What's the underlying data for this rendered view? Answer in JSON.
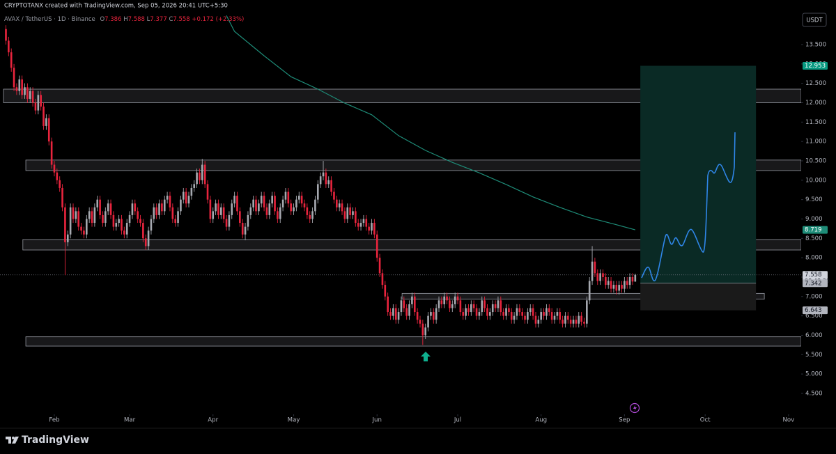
{
  "header": {
    "author_line": "CRYPTOTANX created with TradingView.com, Sep 05, 2026 20:41 UTC+5:30",
    "symbol": "AVAX / TetherUS · 1D · Binance",
    "ohlc": [
      {
        "label": "O",
        "value": "7.386"
      },
      {
        "label": "H",
        "value": "7.588"
      },
      {
        "label": "L",
        "value": "7.377"
      },
      {
        "label": "C",
        "value": "7.558"
      }
    ],
    "change": "+0.172 (+2.33%)"
  },
  "currency": "USDT",
  "branding": "TradingView",
  "chart_data": {
    "type": "candlestick",
    "up_color": "#a6a9b0",
    "down_color": "#e8243d",
    "xlim": [
      11.8,
      309.7
    ],
    "ylim": [
      3.96,
      14.65
    ],
    "xticks": [
      {
        "value": 32,
        "label": "Feb"
      },
      {
        "value": 60,
        "label": "Mar"
      },
      {
        "value": 91,
        "label": "Apr"
      },
      {
        "value": 121,
        "label": "May"
      },
      {
        "value": 152,
        "label": "Jun"
      },
      {
        "value": 182,
        "label": "Jul"
      },
      {
        "value": 213,
        "label": "Aug"
      },
      {
        "value": 244,
        "label": "Sep"
      },
      {
        "value": 274,
        "label": "Oct"
      },
      {
        "value": 305,
        "label": "Nov"
      }
    ],
    "yticks": [
      {
        "value": 4.5,
        "label": "4.500"
      },
      {
        "value": 5,
        "label": "5.000"
      },
      {
        "value": 5.5,
        "label": "5.500"
      },
      {
        "value": 6,
        "label": "6.000"
      },
      {
        "value": 6.5,
        "label": "6.500"
      },
      {
        "value": 7,
        "label": "7.000"
      },
      {
        "value": 7.5,
        "label": "7.500"
      },
      {
        "value": 8,
        "label": "8.000"
      },
      {
        "value": 8.5,
        "label": "8.500"
      },
      {
        "value": 9,
        "label": "9.000"
      },
      {
        "value": 9.5,
        "label": "9.500"
      },
      {
        "value": 10,
        "label": "10.000"
      },
      {
        "value": 10.5,
        "label": "10.500"
      },
      {
        "value": 11,
        "label": "11.000"
      },
      {
        "value": 11.5,
        "label": "11.500"
      },
      {
        "value": 12,
        "label": "12.000"
      },
      {
        "value": 12.5,
        "label": "12.500"
      },
      {
        "value": 13,
        "label": "13.000"
      },
      {
        "value": 13.5,
        "label": "13.500"
      }
    ],
    "x": [
      14,
      15,
      16,
      17,
      18,
      19,
      20,
      21,
      22,
      23,
      24,
      25,
      26,
      27,
      28,
      29,
      30,
      31,
      32,
      33,
      34,
      35,
      36,
      37,
      38,
      39,
      40,
      41,
      42,
      43,
      44,
      45,
      46,
      47,
      48,
      49,
      50,
      51,
      52,
      53,
      54,
      55,
      56,
      57,
      58,
      59,
      60,
      61,
      62,
      63,
      64,
      65,
      66,
      67,
      68,
      69,
      70,
      71,
      72,
      73,
      74,
      75,
      76,
      77,
      78,
      79,
      80,
      81,
      82,
      83,
      84,
      85,
      86,
      87,
      88,
      89,
      90,
      91,
      92,
      93,
      94,
      95,
      96,
      97,
      98,
      99,
      100,
      101,
      102,
      103,
      104,
      105,
      106,
      107,
      108,
      109,
      110,
      111,
      112,
      113,
      114,
      115,
      116,
      117,
      118,
      119,
      120,
      121,
      122,
      123,
      124,
      125,
      126,
      127,
      128,
      129,
      130,
      131,
      132,
      133,
      134,
      135,
      136,
      137,
      138,
      139,
      140,
      141,
      142,
      143,
      144,
      145,
      146,
      147,
      148,
      149,
      150,
      151,
      152,
      153,
      154,
      155,
      156,
      157,
      158,
      159,
      160,
      161,
      162,
      163,
      164,
      165,
      166,
      167,
      168,
      169,
      170,
      171,
      172,
      173,
      174,
      175,
      176,
      177,
      178,
      179,
      180,
      181,
      182,
      183,
      184,
      185,
      186,
      187,
      188,
      189,
      190,
      191,
      192,
      193,
      194,
      195,
      196,
      197,
      198,
      199,
      200,
      201,
      202,
      203,
      204,
      205,
      206,
      207,
      208,
      209,
      210,
      211,
      212,
      213,
      214,
      215,
      216,
      217,
      218,
      219,
      220,
      221,
      222,
      223,
      224,
      225,
      226,
      227,
      228,
      229,
      230,
      231,
      232,
      233,
      234,
      235,
      236,
      237,
      238,
      239,
      240,
      241,
      242,
      243,
      244,
      245,
      246,
      247,
      248
    ],
    "open": [
      13.9,
      13.6,
      13.3,
      12.9,
      12.4,
      12.3,
      12.6,
      12.2,
      12.4,
      12.1,
      12.3,
      12.0,
      11.8,
      12.2,
      11.9,
      11.4,
      11.6,
      11.0,
      10.4,
      10.2,
      10.0,
      9.8,
      9.3,
      8.4,
      8.6,
      9.3,
      9.0,
      9.2,
      8.8,
      8.7,
      8.6,
      9.0,
      9.2,
      8.9,
      9.3,
      9.5,
      9.1,
      8.9,
      9.2,
      9.4,
      9.1,
      8.8,
      8.9,
      9.0,
      8.7,
      8.6,
      8.9,
      9.1,
      9.4,
      9.2,
      9.0,
      8.9,
      8.5,
      8.3,
      8.7,
      9.0,
      9.3,
      9.1,
      9.4,
      9.2,
      9.5,
      9.6,
      9.3,
      9.0,
      8.9,
      9.2,
      9.5,
      9.7,
      9.4,
      9.6,
      9.8,
      9.9,
      10.2,
      10.0,
      10.4,
      9.9,
      9.5,
      9.0,
      9.2,
      9.4,
      9.1,
      9.3,
      9.0,
      8.8,
      9.1,
      9.4,
      9.6,
      9.2,
      8.9,
      8.6,
      8.8,
      9.1,
      9.3,
      9.5,
      9.2,
      9.4,
      9.6,
      9.3,
      9.1,
      9.4,
      9.6,
      9.2,
      9.0,
      9.3,
      9.5,
      9.7,
      9.4,
      9.2,
      9.3,
      9.5,
      9.6,
      9.4,
      9.3,
      9.1,
      9.0,
      9.2,
      9.5,
      9.9,
      10.1,
      10.2,
      9.9,
      10.0,
      9.7,
      9.5,
      9.3,
      9.4,
      9.2,
      9.0,
      9.3,
      9.1,
      9.2,
      8.9,
      8.8,
      8.9,
      9.0,
      8.8,
      8.7,
      8.9,
      8.6,
      8.0,
      7.6,
      7.3,
      7.0,
      6.6,
      6.5,
      6.7,
      6.4,
      6.6,
      6.9,
      6.7,
      6.5,
      6.8,
      7.0,
      6.6,
      6.4,
      6.3,
      6.0,
      6.2,
      6.5,
      6.6,
      6.4,
      6.7,
      6.9,
      6.8,
      7.0,
      6.9,
      6.7,
      6.8,
      7.0,
      6.9,
      6.6,
      6.5,
      6.7,
      6.6,
      6.8,
      6.7,
      6.5,
      6.6,
      6.9,
      6.7,
      6.5,
      6.6,
      6.8,
      6.7,
      6.9,
      6.6,
      6.5,
      6.7,
      6.6,
      6.4,
      6.5,
      6.7,
      6.6,
      6.5,
      6.4,
      6.6,
      6.7,
      6.5,
      6.3,
      6.4,
      6.6,
      6.5,
      6.7,
      6.6,
      6.4,
      6.5,
      6.6,
      6.4,
      6.3,
      6.5,
      6.4,
      6.3,
      6.4,
      6.3,
      6.5,
      6.35,
      6.3,
      6.9,
      7.4,
      7.9,
      7.6,
      7.4,
      7.6,
      7.5,
      7.3,
      7.4,
      7.2,
      7.3,
      7.15,
      7.3,
      7.2,
      7.4,
      7.3,
      7.5,
      7.386
    ],
    "high": [
      14.0,
      13.7,
      13.4,
      13.0,
      12.5,
      12.7,
      12.7,
      12.5,
      12.5,
      12.4,
      12.4,
      12.1,
      12.3,
      12.3,
      12.0,
      11.7,
      11.7,
      11.1,
      10.5,
      10.3,
      10.1,
      9.9,
      9.4,
      8.7,
      9.4,
      9.4,
      9.3,
      9.3,
      8.9,
      8.8,
      9.1,
      9.3,
      9.3,
      9.4,
      9.6,
      9.6,
      9.2,
      9.3,
      9.5,
      9.5,
      9.2,
      9.0,
      9.1,
      9.1,
      8.8,
      9.0,
      9.2,
      9.5,
      9.5,
      9.3,
      9.1,
      9.0,
      8.6,
      8.8,
      9.1,
      9.4,
      9.4,
      9.5,
      9.5,
      9.6,
      9.7,
      9.7,
      9.4,
      9.1,
      9.3,
      9.6,
      9.8,
      9.8,
      9.7,
      9.9,
      10.0,
      10.3,
      10.3,
      10.55,
      10.5,
      10.0,
      9.6,
      9.3,
      9.5,
      9.5,
      9.4,
      9.4,
      9.1,
      9.2,
      9.5,
      9.7,
      9.7,
      9.3,
      9.0,
      8.9,
      9.2,
      9.4,
      9.6,
      9.6,
      9.5,
      9.7,
      9.7,
      9.4,
      9.5,
      9.7,
      9.7,
      9.3,
      9.4,
      9.6,
      9.8,
      9.8,
      9.5,
      9.4,
      9.6,
      9.7,
      9.7,
      9.5,
      9.4,
      9.2,
      9.3,
      9.6,
      10.0,
      10.2,
      10.5,
      10.3,
      10.1,
      10.1,
      9.8,
      9.6,
      9.5,
      9.5,
      9.3,
      9.4,
      9.4,
      9.3,
      9.3,
      9.0,
      9.0,
      9.1,
      9.1,
      8.9,
      9.0,
      9.0,
      8.7,
      8.1,
      7.7,
      7.4,
      7.1,
      6.7,
      6.8,
      6.8,
      6.7,
      7.0,
      7.0,
      6.8,
      6.9,
      7.1,
      7.1,
      6.7,
      6.5,
      6.4,
      6.3,
      6.6,
      6.7,
      6.7,
      6.8,
      7.0,
      7.0,
      7.1,
      7.1,
      7.0,
      6.9,
      7.1,
      7.1,
      7.0,
      6.7,
      6.8,
      6.8,
      6.9,
      6.9,
      6.8,
      6.7,
      7.0,
      7.0,
      6.8,
      6.7,
      6.9,
      6.9,
      7.0,
      7.0,
      6.7,
      6.8,
      6.8,
      6.7,
      6.6,
      6.8,
      6.8,
      6.7,
      6.6,
      6.7,
      6.8,
      6.8,
      6.6,
      6.5,
      6.7,
      6.7,
      6.8,
      6.8,
      6.7,
      6.6,
      6.7,
      6.7,
      6.5,
      6.6,
      6.6,
      6.5,
      6.5,
      6.5,
      6.6,
      6.6,
      6.45,
      7.0,
      7.5,
      8.3,
      8.0,
      7.7,
      7.7,
      7.7,
      7.6,
      7.5,
      7.5,
      7.4,
      7.4,
      7.4,
      7.4,
      7.5,
      7.5,
      7.6,
      7.6,
      7.588
    ],
    "low": [
      13.5,
      13.2,
      12.8,
      12.3,
      12.2,
      12.2,
      12.1,
      12.1,
      12.0,
      12.0,
      11.9,
      11.7,
      11.7,
      11.8,
      11.3,
      11.3,
      10.9,
      10.3,
      10.1,
      9.9,
      9.7,
      9.2,
      7.55,
      8.3,
      8.5,
      8.9,
      8.9,
      8.7,
      8.6,
      8.5,
      8.5,
      8.9,
      8.8,
      8.8,
      9.2,
      9.0,
      8.8,
      8.8,
      9.1,
      9.0,
      8.7,
      8.7,
      8.8,
      8.6,
      8.5,
      8.5,
      8.8,
      9.0,
      9.1,
      8.9,
      8.8,
      8.4,
      8.2,
      8.2,
      8.6,
      8.9,
      9.0,
      9.0,
      9.1,
      9.1,
      9.4,
      9.2,
      8.9,
      8.8,
      8.8,
      9.1,
      9.4,
      9.3,
      9.3,
      9.5,
      9.7,
      9.8,
      9.9,
      9.9,
      9.8,
      9.4,
      8.9,
      8.9,
      9.1,
      9.0,
      9.0,
      8.9,
      8.7,
      8.7,
      9.0,
      9.3,
      9.1,
      8.8,
      8.5,
      8.45,
      8.7,
      9.0,
      9.2,
      9.1,
      9.1,
      9.3,
      9.2,
      9.0,
      9.0,
      9.3,
      9.1,
      8.9,
      8.9,
      9.2,
      9.4,
      9.3,
      9.1,
      9.1,
      9.2,
      9.4,
      9.3,
      9.2,
      9.0,
      8.9,
      8.9,
      9.1,
      9.4,
      9.8,
      10.0,
      9.8,
      9.8,
      9.6,
      9.4,
      9.2,
      9.2,
      9.1,
      8.9,
      8.9,
      9.0,
      9.0,
      8.8,
      8.7,
      8.7,
      8.8,
      8.7,
      8.6,
      8.6,
      8.5,
      7.9,
      7.5,
      7.2,
      6.9,
      6.5,
      6.4,
      6.4,
      6.3,
      6.3,
      6.5,
      6.6,
      6.4,
      6.4,
      6.7,
      6.5,
      6.3,
      6.2,
      5.75,
      5.9,
      6.1,
      6.4,
      6.3,
      6.3,
      6.6,
      6.7,
      6.7,
      6.8,
      6.6,
      6.6,
      6.7,
      6.8,
      6.5,
      6.4,
      6.4,
      6.5,
      6.5,
      6.6,
      6.4,
      6.4,
      6.5,
      6.6,
      6.4,
      6.4,
      6.5,
      6.6,
      6.6,
      6.5,
      6.4,
      6.4,
      6.5,
      6.3,
      6.3,
      6.4,
      6.5,
      6.4,
      6.3,
      6.3,
      6.5,
      6.4,
      6.2,
      6.2,
      6.3,
      6.4,
      6.4,
      6.5,
      6.3,
      6.3,
      6.4,
      6.3,
      6.2,
      6.2,
      6.3,
      6.2,
      6.2,
      6.2,
      6.2,
      6.25,
      6.2,
      6.2,
      6.8,
      7.3,
      7.5,
      7.3,
      7.3,
      7.4,
      7.2,
      7.2,
      7.1,
      7.1,
      7.05,
      7.05,
      7.1,
      7.1,
      7.2,
      7.2,
      7.3,
      7.377
    ],
    "close": [
      13.6,
      13.3,
      12.9,
      12.4,
      12.3,
      12.6,
      12.2,
      12.4,
      12.1,
      12.3,
      12.0,
      11.8,
      12.2,
      11.9,
      11.4,
      11.6,
      11.0,
      10.4,
      10.2,
      10.0,
      9.8,
      9.3,
      8.4,
      8.6,
      9.3,
      9.0,
      9.2,
      8.8,
      8.7,
      8.6,
      9.0,
      9.2,
      8.9,
      9.3,
      9.5,
      9.1,
      8.9,
      9.2,
      9.4,
      9.1,
      8.8,
      8.9,
      9.0,
      8.7,
      8.6,
      8.9,
      9.1,
      9.4,
      9.2,
      9.0,
      8.9,
      8.5,
      8.3,
      8.7,
      9.0,
      9.3,
      9.1,
      9.4,
      9.2,
      9.5,
      9.6,
      9.3,
      9.0,
      8.9,
      9.2,
      9.5,
      9.7,
      9.4,
      9.6,
      9.8,
      9.9,
      10.2,
      10.0,
      10.4,
      9.9,
      9.5,
      9.0,
      9.2,
      9.4,
      9.1,
      9.3,
      9.0,
      8.8,
      9.1,
      9.4,
      9.6,
      9.2,
      8.9,
      8.6,
      8.8,
      9.1,
      9.3,
      9.5,
      9.2,
      9.4,
      9.6,
      9.3,
      9.1,
      9.4,
      9.6,
      9.2,
      9.0,
      9.3,
      9.5,
      9.7,
      9.4,
      9.2,
      9.3,
      9.5,
      9.6,
      9.4,
      9.3,
      9.1,
      9.0,
      9.2,
      9.5,
      9.9,
      10.1,
      10.2,
      9.9,
      10.0,
      9.7,
      9.5,
      9.3,
      9.4,
      9.2,
      9.0,
      9.3,
      9.1,
      9.2,
      8.9,
      8.8,
      8.9,
      9.0,
      8.8,
      8.7,
      8.9,
      8.6,
      8.0,
      7.6,
      7.3,
      7.0,
      6.6,
      6.5,
      6.7,
      6.4,
      6.6,
      6.9,
      6.7,
      6.5,
      6.8,
      7.0,
      6.6,
      6.4,
      6.3,
      6.0,
      6.2,
      6.5,
      6.6,
      6.4,
      6.7,
      6.9,
      6.8,
      7.0,
      6.9,
      6.7,
      6.8,
      7.0,
      6.9,
      6.6,
      6.5,
      6.7,
      6.6,
      6.8,
      6.7,
      6.5,
      6.6,
      6.9,
      6.7,
      6.5,
      6.6,
      6.8,
      6.7,
      6.9,
      6.6,
      6.5,
      6.7,
      6.6,
      6.4,
      6.5,
      6.7,
      6.6,
      6.5,
      6.4,
      6.6,
      6.7,
      6.5,
      6.3,
      6.4,
      6.6,
      6.5,
      6.7,
      6.6,
      6.4,
      6.5,
      6.6,
      6.4,
      6.3,
      6.5,
      6.4,
      6.3,
      6.4,
      6.3,
      6.5,
      6.35,
      6.3,
      6.9,
      7.4,
      7.9,
      7.6,
      7.4,
      7.6,
      7.5,
      7.3,
      7.4,
      7.2,
      7.3,
      7.15,
      7.3,
      7.2,
      7.4,
      7.3,
      7.5,
      7.386,
      7.558
    ],
    "countdown": "08:48:30",
    "price_line_color": "#787b86",
    "ema": {
      "color": "#1e8c78",
      "x": [
        96,
        99,
        110,
        120,
        130,
        140,
        150,
        160,
        170,
        180,
        190,
        200,
        210,
        220,
        230,
        240,
        248
      ],
      "values": [
        14.25,
        13.84,
        13.21,
        12.67,
        12.35,
        11.99,
        11.69,
        11.15,
        10.77,
        10.46,
        10.19,
        9.89,
        9.57,
        9.3,
        9.05,
        8.87,
        8.719
      ]
    },
    "zone_color": "#1c1c1e",
    "zones": [
      {
        "x": [
          13.1,
          309.7
        ],
        "y": [
          12.0,
          12.35
        ]
      },
      {
        "x": [
          21.4,
          309.7
        ],
        "y": [
          10.25,
          10.52
        ]
      },
      {
        "x": [
          20.3,
          309.7
        ],
        "y": [
          8.2,
          8.47
        ]
      },
      {
        "x": [
          161.3,
          296.0
        ],
        "y": [
          6.93,
          7.08
        ]
      },
      {
        "x": [
          21.4,
          309.7
        ],
        "y": [
          5.72,
          5.96
        ]
      }
    ],
    "position": {
      "x": [
        249.9,
        292.9
      ],
      "target": 12.953,
      "entry": 7.342,
      "stop": 6.643,
      "profit_color": "#0a2a25",
      "loss_color": "#1a1a1a",
      "target_tag_color": "#089981"
    }
  }
}
